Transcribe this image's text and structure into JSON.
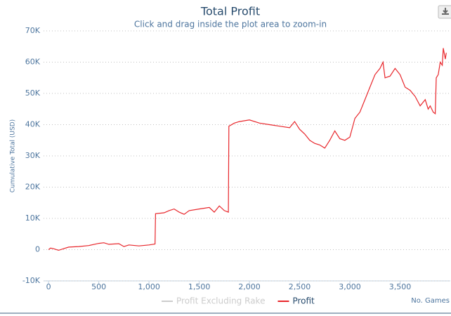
{
  "chart_data": {
    "type": "line",
    "title": "Total Profit",
    "subtitle": "Click and drag inside the plot area to zoom-in",
    "y_axis_label": "Cumulative Total (USD)",
    "x_axis_label": "No. Games",
    "x": [
      0,
      20,
      50,
      100,
      200,
      300,
      400,
      500,
      550,
      600,
      700,
      750,
      800,
      900,
      1000,
      1060,
      1065,
      1150,
      1200,
      1250,
      1300,
      1350,
      1400,
      1500,
      1600,
      1650,
      1700,
      1750,
      1790,
      1795,
      1850,
      1900,
      2000,
      2100,
      2200,
      2300,
      2400,
      2450,
      2500,
      2550,
      2600,
      2650,
      2700,
      2750,
      2800,
      2850,
      2900,
      2950,
      3000,
      3050,
      3100,
      3150,
      3200,
      3250,
      3300,
      3330,
      3350,
      3400,
      3450,
      3500,
      3550,
      3600,
      3650,
      3700,
      3750,
      3780,
      3800,
      3830,
      3850,
      3860,
      3880,
      3900,
      3920,
      3930,
      3950,
      3960
    ],
    "series": [
      {
        "name": "Profit Excluding Rake",
        "color": "#cccccc",
        "visible": false
      },
      {
        "name": "Profit",
        "color": "#e8262b",
        "visible": true,
        "values": [
          0,
          500,
          300,
          -200,
          800,
          1000,
          1300,
          2000,
          2200,
          1700,
          1900,
          1000,
          1500,
          1200,
          1500,
          1800,
          11500,
          11800,
          12500,
          13000,
          12000,
          11300,
          12500,
          13000,
          13500,
          12000,
          14000,
          12500,
          12000,
          39500,
          40500,
          41000,
          41500,
          40500,
          40000,
          39500,
          39000,
          41000,
          38500,
          37000,
          35000,
          34000,
          33500,
          32500,
          35000,
          38000,
          35500,
          35000,
          36000,
          42000,
          44000,
          48000,
          52000,
          56000,
          58000,
          60000,
          55000,
          55500,
          58000,
          56000,
          52000,
          51000,
          49000,
          46000,
          48000,
          45000,
          46000,
          44000,
          43500,
          55000,
          56000,
          60000,
          59000,
          64500,
          61000,
          63000
        ]
      }
    ],
    "xlim": [
      -50,
      4000
    ],
    "ylim": [
      -10000,
      70000
    ],
    "xticks": [
      0,
      500,
      {
        "value": 1000,
        "label": "1,000"
      },
      {
        "value": 1500,
        "label": "1,500"
      },
      {
        "value": 2000,
        "label": "2,000"
      },
      {
        "value": 2500,
        "label": "2,500"
      },
      {
        "value": 3000,
        "label": "3,000"
      },
      {
        "value": 3500,
        "label": "3,500"
      }
    ],
    "yticks": [
      {
        "value": -10000,
        "label": "-10K"
      },
      0,
      {
        "value": 10000,
        "label": "10K"
      },
      {
        "value": 20000,
        "label": "20K"
      },
      {
        "value": 30000,
        "label": "30K"
      },
      {
        "value": 40000,
        "label": "40K"
      },
      {
        "value": 50000,
        "label": "50K"
      },
      {
        "value": 60000,
        "label": "60K"
      },
      {
        "value": 70000,
        "label": "70K"
      }
    ],
    "grid": true
  }
}
